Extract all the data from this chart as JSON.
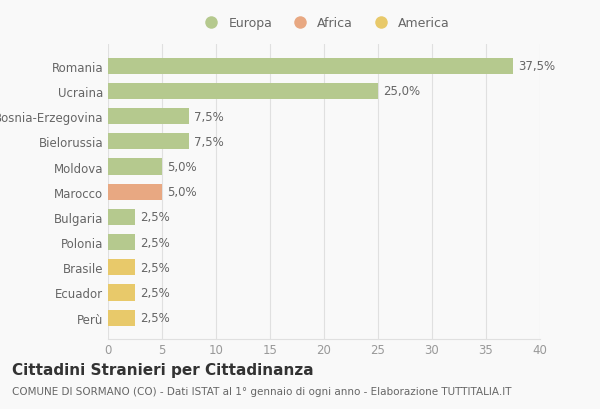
{
  "countries": [
    "Romania",
    "Ucraina",
    "Bosnia-Erzegovina",
    "Bielorussia",
    "Moldova",
    "Marocco",
    "Bulgaria",
    "Polonia",
    "Brasile",
    "Ecuador",
    "Perù"
  ],
  "values": [
    37.5,
    25.0,
    7.5,
    7.5,
    5.0,
    5.0,
    2.5,
    2.5,
    2.5,
    2.5,
    2.5
  ],
  "colors": [
    "#b5c98e",
    "#b5c98e",
    "#b5c98e",
    "#b5c98e",
    "#b5c98e",
    "#e8a882",
    "#b5c98e",
    "#b5c98e",
    "#e8c96a",
    "#e8c96a",
    "#e8c96a"
  ],
  "labels": [
    "37,5%",
    "25,0%",
    "7,5%",
    "7,5%",
    "5,0%",
    "5,0%",
    "2,5%",
    "2,5%",
    "2,5%",
    "2,5%",
    "2,5%"
  ],
  "legend": [
    {
      "label": "Europa",
      "color": "#b5c98e"
    },
    {
      "label": "Africa",
      "color": "#e8a882"
    },
    {
      "label": "America",
      "color": "#e8c96a"
    }
  ],
  "title": "Cittadini Stranieri per Cittadinanza",
  "subtitle": "COMUNE DI SORMANO (CO) - Dati ISTAT al 1° gennaio di ogni anno - Elaborazione TUTTITALIA.IT",
  "xlim": [
    0,
    40
  ],
  "xticks": [
    0,
    5,
    10,
    15,
    20,
    25,
    30,
    35,
    40
  ],
  "background_color": "#f9f9f9",
  "grid_color": "#e0e0e0",
  "bar_height": 0.65,
  "label_fontsize": 8.5,
  "tick_fontsize": 8.5,
  "ylabel_fontsize": 8.5,
  "title_fontsize": 11,
  "subtitle_fontsize": 7.5
}
